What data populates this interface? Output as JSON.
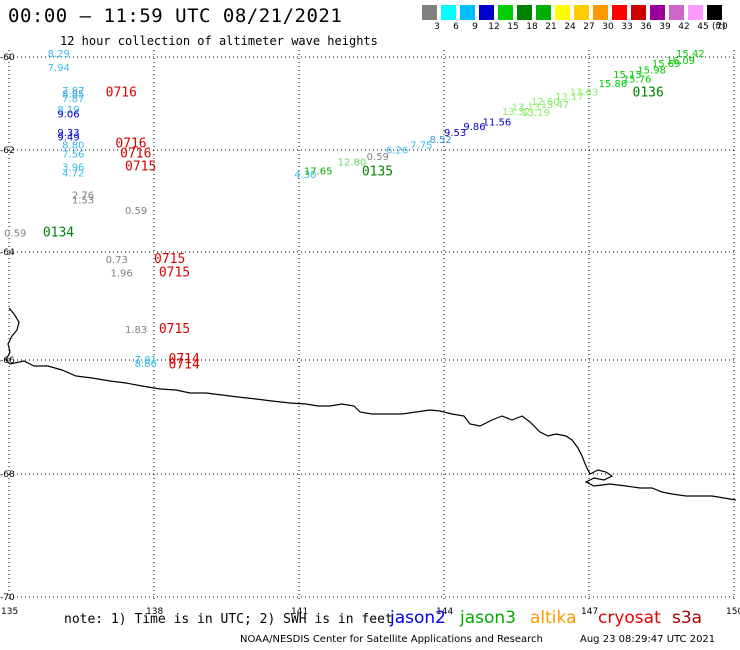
{
  "header": {
    "title": "00:00 – 11:59 UTC 08/21/2021",
    "subtitle": "12 hour collection of altimeter wave heights"
  },
  "color_scale": {
    "colors": [
      "#808080",
      "#00ffff",
      "#00bfff",
      "#0000cc",
      "#00cc00",
      "#008000",
      "#00b000",
      "#ffff00",
      "#ffcc00",
      "#ff9900",
      "#ff0000",
      "#cc0000",
      "#990099",
      "#cc66cc",
      "#ff99ff",
      "#000000"
    ],
    "labels": [
      "3",
      "6",
      "9",
      "12",
      "15",
      "18",
      "21",
      "24",
      "27",
      "30",
      "33",
      "36",
      "39",
      "42",
      "45",
      "70"
    ],
    "unit": "(ft)"
  },
  "axes": {
    "lon_labels": [
      "135",
      "138",
      "141",
      "144",
      "147",
      "150"
    ],
    "lat_labels": [
      "-60",
      "-62",
      "-64",
      "-66",
      "-68",
      "-70"
    ]
  },
  "observations": [
    {
      "t": "8.29",
      "c": "#33bbee",
      "lon": 135.8,
      "lat": -60.0
    },
    {
      "t": "7.94",
      "c": "#33bbee",
      "lon": 135.8,
      "lat": -60.3
    },
    {
      "t": "7.87",
      "c": "#33bbee",
      "lon": 136.1,
      "lat": -60.8
    },
    {
      "t": "8.85",
      "c": "#3399dd",
      "lon": 136.1,
      "lat": -60.87
    },
    {
      "t": "7.87",
      "c": "#33bbee",
      "lon": 136.1,
      "lat": -60.97
    },
    {
      "t": "8.19",
      "c": "#33bbee",
      "lon": 136.0,
      "lat": -61.2
    },
    {
      "t": "9.06",
      "c": "#0000cc",
      "lon": 136.0,
      "lat": -61.3
    },
    {
      "t": "9.33",
      "c": "#0000cc",
      "lon": 136.0,
      "lat": -61.7
    },
    {
      "t": "9.49",
      "c": "#0000cc",
      "lon": 136.0,
      "lat": -61.8
    },
    {
      "t": "8.80",
      "c": "#33bbee",
      "lon": 136.1,
      "lat": -61.97
    },
    {
      "t": "7.56",
      "c": "#33bbee",
      "lon": 136.1,
      "lat": -62.15
    },
    {
      "t": "3.96",
      "c": "#33bbee",
      "lon": 136.1,
      "lat": -62.4
    },
    {
      "t": "4.72",
      "c": "#33bbee",
      "lon": 136.1,
      "lat": -62.52
    },
    {
      "t": "2.76",
      "c": "#808080",
      "lon": 136.3,
      "lat": -62.95
    },
    {
      "t": "1.53",
      "c": "#808080",
      "lon": 136.3,
      "lat": -63.05
    },
    {
      "t": "0.59",
      "c": "#808080",
      "lon": 137.4,
      "lat": -63.25
    },
    {
      "t": "0.59",
      "c": "#808080",
      "lon": 134.9,
      "lat": -63.7
    },
    {
      "t": "0.73",
      "c": "#808080",
      "lon": 137.0,
      "lat": -64.2
    },
    {
      "t": "1.96",
      "c": "#808080",
      "lon": 137.1,
      "lat": -64.45
    },
    {
      "t": "1.83",
      "c": "#808080",
      "lon": 137.4,
      "lat": -65.5
    },
    {
      "t": "7.81",
      "c": "#33bbee",
      "lon": 137.6,
      "lat": -66.05
    },
    {
      "t": "8.86",
      "c": "#33bbee",
      "lon": 137.6,
      "lat": -66.12
    },
    {
      "t": "4.30",
      "c": "#33bbee",
      "lon": 140.9,
      "lat": -62.55
    },
    {
      "t": "17.65",
      "c": "#00aa00",
      "lon": 141.1,
      "lat": -62.48
    },
    {
      "t": "12.80",
      "c": "#66dd66",
      "lon": 141.8,
      "lat": -62.3
    },
    {
      "t": "0.59",
      "c": "#808080",
      "lon": 142.4,
      "lat": -62.2
    },
    {
      "t": "6.26",
      "c": "#33bbee",
      "lon": 142.8,
      "lat": -62.07
    },
    {
      "t": "7.75",
      "c": "#33bbee",
      "lon": 143.3,
      "lat": -61.97
    },
    {
      "t": "8.52",
      "c": "#3399dd",
      "lon": 143.7,
      "lat": -61.85
    },
    {
      "t": "9.53",
      "c": "#0000cc",
      "lon": 144.0,
      "lat": -61.7
    },
    {
      "t": "9.86",
      "c": "#0000cc",
      "lon": 144.4,
      "lat": -61.57
    },
    {
      "t": "11.56",
      "c": "#0000cc",
      "lon": 144.8,
      "lat": -61.47
    },
    {
      "t": "13.32",
      "c": "#88ee66",
      "lon": 145.2,
      "lat": -61.25
    },
    {
      "t": "13.13",
      "c": "#88ee66",
      "lon": 145.4,
      "lat": -61.15
    },
    {
      "t": "13.19",
      "c": "#88ee66",
      "lon": 145.6,
      "lat": -61.27
    },
    {
      "t": "12.60",
      "c": "#88ee66",
      "lon": 145.8,
      "lat": -61.03
    },
    {
      "t": "13.47",
      "c": "#88ee66",
      "lon": 146.0,
      "lat": -61.1
    },
    {
      "t": "13.17",
      "c": "#88ee66",
      "lon": 146.3,
      "lat": -60.92
    },
    {
      "t": "13.63",
      "c": "#88ee66",
      "lon": 146.6,
      "lat": -60.83
    },
    {
      "t": "15.86",
      "c": "#00cc00",
      "lon": 147.2,
      "lat": -60.65
    },
    {
      "t": "15.15",
      "c": "#00cc00",
      "lon": 147.5,
      "lat": -60.45
    },
    {
      "t": "15.76",
      "c": "#00cc00",
      "lon": 147.7,
      "lat": -60.55
    },
    {
      "t": "15.98",
      "c": "#00cc00",
      "lon": 148.0,
      "lat": -60.35
    },
    {
      "t": "15.69",
      "c": "#00cc00",
      "lon": 148.3,
      "lat": -60.22
    },
    {
      "t": "16.09",
      "c": "#00cc00",
      "lon": 148.6,
      "lat": -60.15
    },
    {
      "t": "15.42",
      "c": "#00cc00",
      "lon": 148.8,
      "lat": -60.0
    }
  ],
  "passes": [
    {
      "t": "0716",
      "c": "#dd0000",
      "lon": 137.0,
      "lat": -60.85
    },
    {
      "t": "0716",
      "c": "#dd0000",
      "lon": 137.2,
      "lat": -61.95
    },
    {
      "t": "0716",
      "c": "#dd0000",
      "lon": 137.3,
      "lat": -62.15
    },
    {
      "t": "0715",
      "c": "#dd0000",
      "lon": 137.4,
      "lat": -62.4
    },
    {
      "t": "0134",
      "c": "#008000",
      "lon": 135.7,
      "lat": -63.7
    },
    {
      "t": "0715",
      "c": "#dd0000",
      "lon": 138.0,
      "lat": -64.2
    },
    {
      "t": "0715",
      "c": "#dd0000",
      "lon": 138.1,
      "lat": -64.45
    },
    {
      "t": "0715",
      "c": "#dd0000",
      "lon": 138.1,
      "lat": -65.5
    },
    {
      "t": "0714",
      "c": "#dd0000",
      "lon": 138.3,
      "lat": -66.05
    },
    {
      "t": "0714",
      "c": "#dd0000",
      "lon": 138.3,
      "lat": -66.15
    },
    {
      "t": "0135",
      "c": "#008000",
      "lon": 142.3,
      "lat": -62.5
    },
    {
      "t": "0136",
      "c": "#008000",
      "lon": 147.9,
      "lat": -60.85
    }
  ],
  "footer": {
    "note": "note: 1) Time is in UTC; 2) SWH is in feet",
    "missions": [
      {
        "label": "jason2",
        "color": "#0000ee"
      },
      {
        "label": "jason3",
        "color": "#00aa00"
      },
      {
        "label": "altika",
        "color": "#ff9900"
      },
      {
        "label": "cryosat",
        "color": "#ee0000"
      },
      {
        "label": "s3a",
        "color": "#aa0000"
      }
    ],
    "credits": "NOAA/NESDIS Center for Satellite Applications and Research",
    "stamp": "Aug 23 08:29:47 UTC 2021"
  }
}
